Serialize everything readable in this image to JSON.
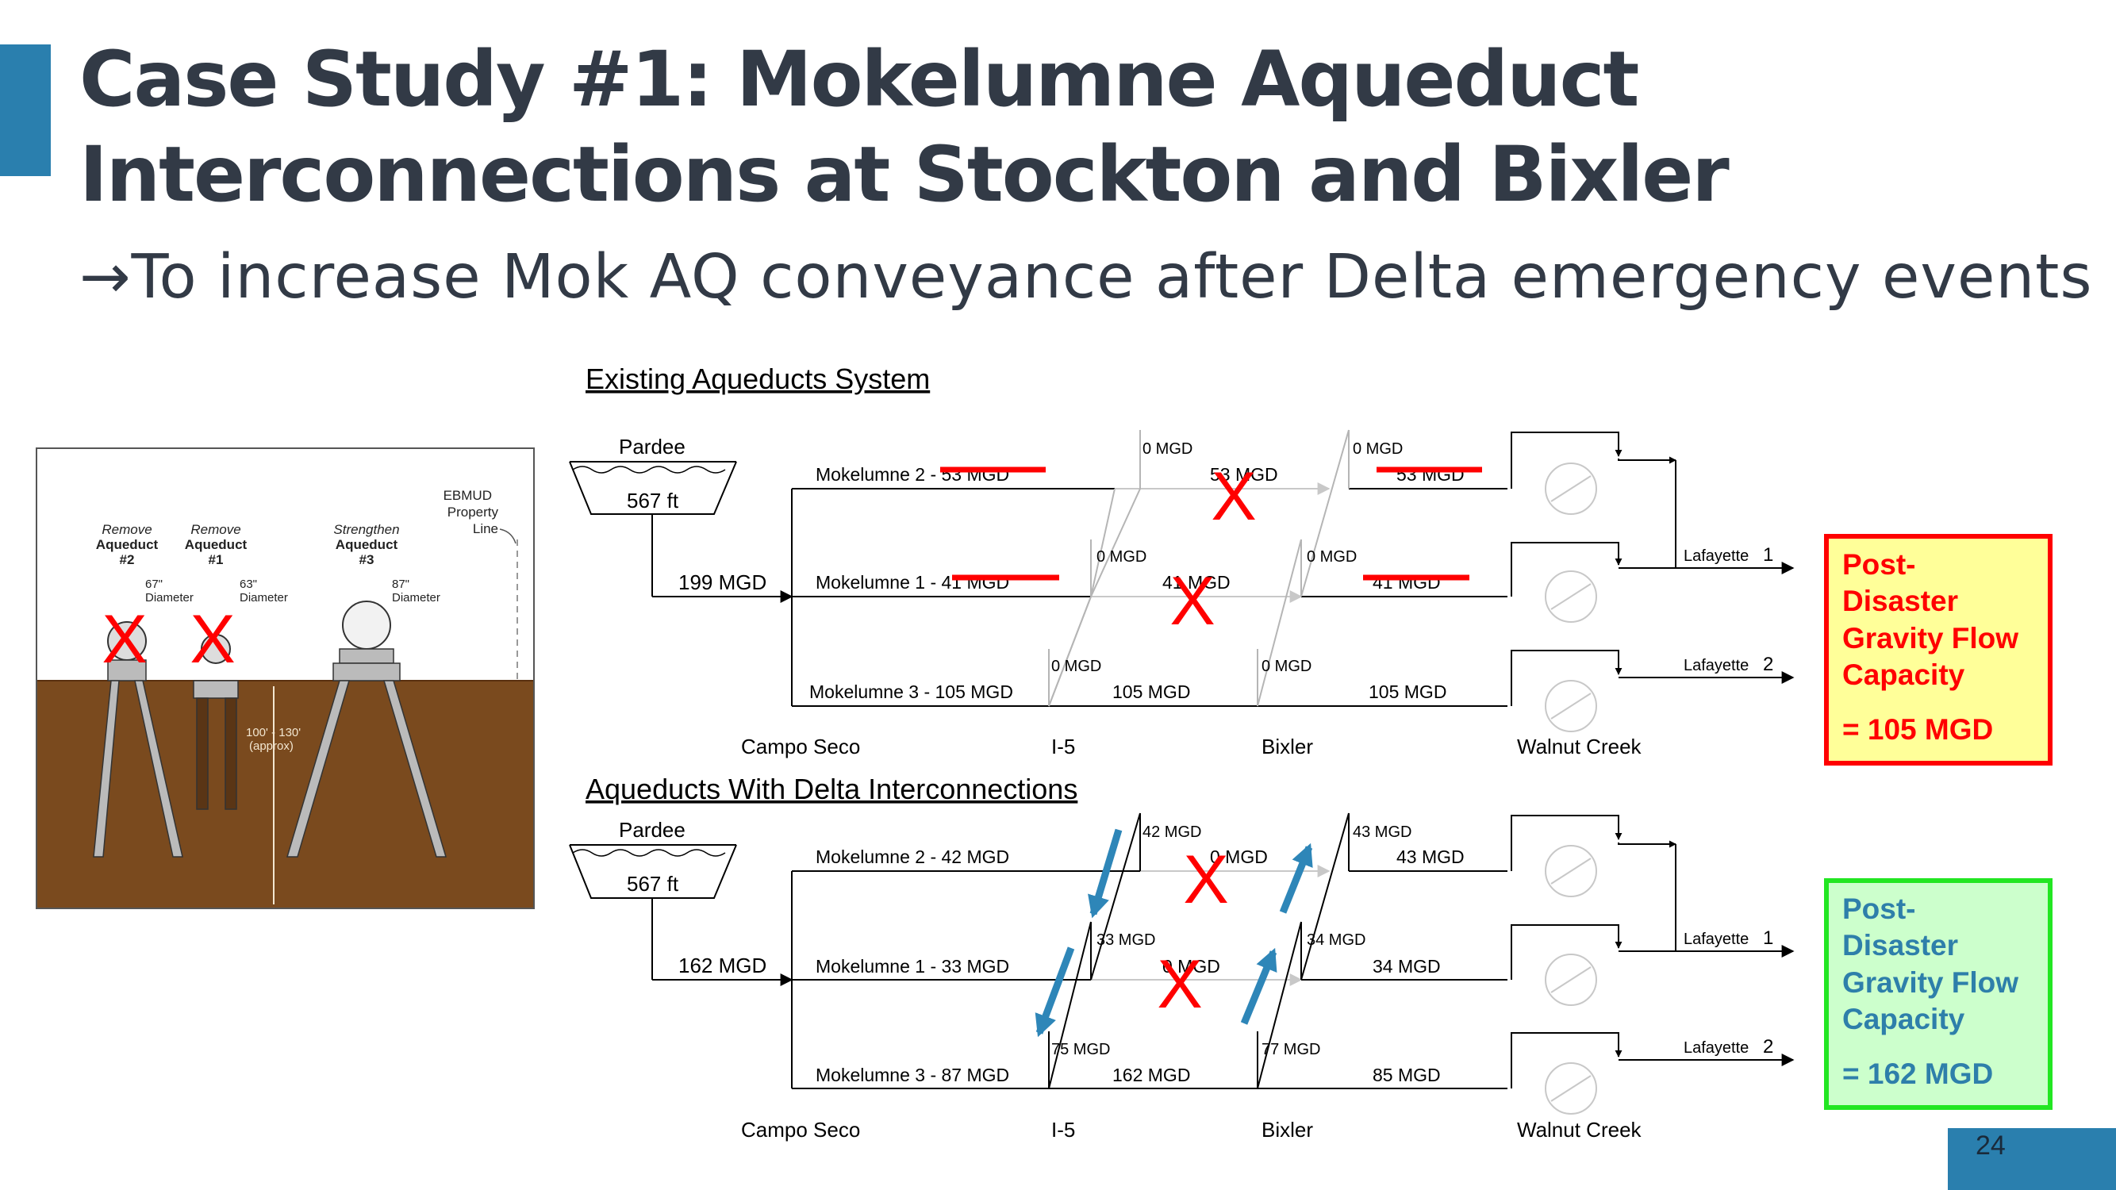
{
  "slide": {
    "title_line1": "Case Study #1: Mokelumne Aqueduct",
    "title_line2": "Interconnections at Stockton and Bixler",
    "subtitle": "→To increase Mok AQ conveyance after Delta emergency events",
    "page_number": "24"
  },
  "cross_section": {
    "label_remove_2_a": "Remove",
    "label_remove_2_b": "Aqueduct",
    "label_remove_2_c": "#2",
    "label_remove_1_a": "Remove",
    "label_remove_1_b": "Aqueduct",
    "label_remove_1_c": "#1",
    "label_strengthen_a": "Strengthen",
    "label_strengthen_b": "Aqueduct",
    "label_strengthen_c": "#3",
    "dia_2": "67\"",
    "dia_1": "63\"",
    "dia_3": "87\"",
    "diameter_word": "Diameter",
    "prop_a": "EBMUD",
    "prop_b": "Property",
    "prop_c": "Line",
    "depth_a": "100' - 130'",
    "depth_b": "(approx)",
    "x_mark": "X"
  },
  "existing": {
    "heading": "Existing Aqueducts System",
    "reservoir": "Pardee",
    "elevation": "567 ft",
    "inflow": "199 MGD",
    "mok2": "Mokelumne 2 - 53 MGD",
    "mok1": "Mokelumne 1 - 41 MGD",
    "mok3": "Mokelumne 3 - 105 MGD",
    "i5_top": "0 MGD",
    "i5_mid": "0 MGD",
    "i5_bot": "0 MGD",
    "bx_top": "0 MGD",
    "bx_mid": "0 MGD",
    "bx_bot": "0 MGD",
    "seg2_a": "53 MGD",
    "seg2_b": "53 MGD",
    "seg1_a": "41 MGD",
    "seg1_b": "41 MGD",
    "seg3_a": "105 MGD",
    "seg3_b": "105 MGD",
    "lafayette1": "Lafayette",
    "lafayette1_num": "1",
    "lafayette2": "Lafayette",
    "lafayette2_num": "2",
    "loc_campo": "Campo Seco",
    "loc_i5": "I-5",
    "loc_bixler": "Bixler",
    "loc_walnut": "Walnut Creek",
    "capacity_a": "Post-",
    "capacity_b": "Disaster",
    "capacity_c": "Gravity Flow",
    "capacity_d": "Capacity",
    "capacity_value": "= 105 MGD"
  },
  "interconnected": {
    "heading": "Aqueducts With Delta Interconnections",
    "reservoir": "Pardee",
    "elevation": "567 ft",
    "inflow": "162 MGD",
    "mok2": "Mokelumne 2 - 42 MGD",
    "mok1": "Mokelumne 1 - 33 MGD",
    "mok3": "Mokelumne 3 - 87 MGD",
    "i5_top": "42 MGD",
    "i5_mid": "33 MGD",
    "i5_bot": "75 MGD",
    "bx_top": "43 MGD",
    "bx_mid": "34 MGD",
    "bx_bot": "77 MGD",
    "seg2_a": "0 MGD",
    "seg2_b": "43 MGD",
    "seg1_a": "0 MGD",
    "seg1_b": "34 MGD",
    "seg3_a": "162 MGD",
    "seg3_b": "85 MGD",
    "lafayette1": "Lafayette",
    "lafayette1_num": "1",
    "lafayette2": "Lafayette",
    "lafayette2_num": "2",
    "loc_campo": "Campo Seco",
    "loc_i5": "I-5",
    "loc_bixler": "Bixler",
    "loc_walnut": "Walnut Creek",
    "capacity_a": "Post-",
    "capacity_b": "Disaster",
    "capacity_c": "Gravity Flow",
    "capacity_d": "Capacity",
    "capacity_value": "= 162 MGD"
  },
  "colors": {
    "accent": "#2a7fae",
    "title": "#323a46",
    "red": "#ff0000",
    "green": "#22e622",
    "yellow_fill": "#ffff99",
    "green_fill": "#ccffcc",
    "capacity_text": "#2e7faa",
    "arrow_blue": "#2e86b8",
    "soil": "#7a4a1e"
  }
}
